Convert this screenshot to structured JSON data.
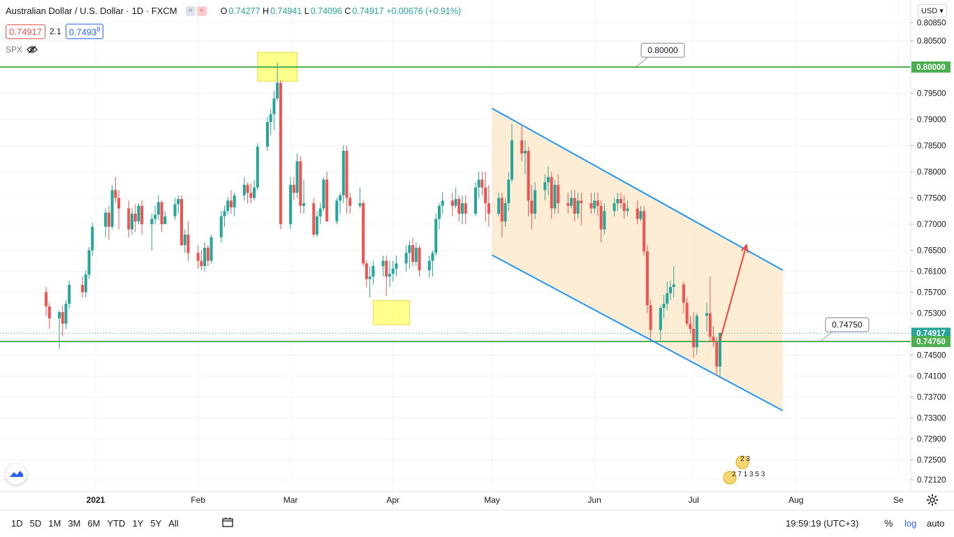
{
  "legend": {
    "title": "Australian Dollar / U.S. Dollar · 1D · FXCM",
    "ohlc": [
      {
        "label": "O",
        "value": "0.74277"
      },
      {
        "label": "H",
        "value": "0.74941"
      },
      {
        "label": "L",
        "value": "0.74096"
      },
      {
        "label": "C",
        "value": "0.74917"
      },
      {
        "label": "",
        "value": "+0.00676 (+0.91%)"
      }
    ],
    "sell_price": "0.74917",
    "spread": "2.1",
    "buy_price": "0.7493",
    "buy_price_sup": "8",
    "compare_symbol": "SPX"
  },
  "currency": "USD",
  "bottom": {
    "ranges": [
      "1D",
      "5D",
      "1M",
      "3M",
      "6M",
      "YTD",
      "1Y",
      "5Y",
      "All"
    ],
    "clock": "19:59:19 (UTC+3)",
    "percent": "%",
    "log": "log",
    "auto": "auto"
  },
  "event_labels": {
    "upper": "2 3",
    "lower": "2 7 1 3 5 3"
  },
  "colors": {
    "up": "#26a69a",
    "down": "#ef5350",
    "level_line": "#4caf50",
    "channel_line": "#2196f3",
    "channel_fill": "#fdeacc",
    "highlight": "#ffff66",
    "arrow": "#f44336",
    "current_price_label": "#26a69a"
  },
  "chart_data": {
    "type": "candlestick",
    "symbol": "AUDUSD",
    "timeframe": "1D",
    "y_ticks": [
      "0.80850",
      "0.80500",
      "0.80000",
      "0.79500",
      "0.79000",
      "0.78500",
      "0.78000",
      "0.77500",
      "0.77000",
      "0.76500",
      "0.76100",
      "0.75700",
      "0.75300",
      "0.74917",
      "0.74760",
      "0.74500",
      "0.74100",
      "0.73700",
      "0.73300",
      "0.72900",
      "0.72500",
      "0.72120"
    ],
    "x_ticks": [
      {
        "label": "2021",
        "date": "2021-01-01"
      },
      {
        "label": "Feb",
        "date": "2021-02-01"
      },
      {
        "label": "Mar",
        "date": "2021-03-01"
      },
      {
        "label": "Apr",
        "date": "2021-04-01"
      },
      {
        "label": "May",
        "date": "2021-05-01"
      },
      {
        "label": "Jun",
        "date": "2021-06-01"
      },
      {
        "label": "Jul",
        "date": "2021-07-01"
      },
      {
        "label": "Aug",
        "date": "2021-08-01"
      },
      {
        "label": "Se",
        "date": "2021-09-01"
      }
    ],
    "y_range": [
      0.7208,
      0.8105
    ],
    "horizontal_levels": [
      {
        "value": 0.8,
        "label": "0.80000",
        "color": "#4caf50"
      },
      {
        "value": 0.7476,
        "label": "0.74760",
        "callout": "0.74750",
        "color": "#4caf50"
      }
    ],
    "current_price": {
      "value": 0.74917,
      "label": "0.74917"
    },
    "channel": {
      "upper": [
        {
          "date": "2021-05-01",
          "value": 0.7921
        },
        {
          "date": "2021-07-28",
          "value": 0.7612
        }
      ],
      "lower": [
        {
          "date": "2021-05-01",
          "value": 0.7641
        },
        {
          "date": "2021-07-28",
          "value": 0.7344
        }
      ]
    },
    "arrow": {
      "from": {
        "date": "2021-07-09",
        "value": 0.7478
      },
      "to": {
        "date": "2021-07-17",
        "value": 0.766
      }
    },
    "highlight_boxes": [
      {
        "from": "2021-02-19",
        "to": "2021-03-03",
        "top": 0.8028,
        "bottom": 0.7973
      },
      {
        "from": "2021-03-26",
        "to": "2021-04-06",
        "top": 0.7554,
        "bottom": 0.7508
      }
    ],
    "candles": [
      [
        "2020-12-17",
        0.757,
        0.758,
        0.7525,
        0.7543
      ],
      [
        "2020-12-18",
        0.7543,
        0.755,
        0.75,
        0.752
      ],
      [
        "2020-12-21",
        0.752,
        0.7535,
        0.7462,
        0.7532
      ],
      [
        "2020-12-22",
        0.7532,
        0.7545,
        0.7486,
        0.751
      ],
      [
        "2020-12-23",
        0.751,
        0.7555,
        0.75,
        0.7548
      ],
      [
        "2020-12-24",
        0.7548,
        0.7592,
        0.7538,
        0.7584
      ],
      [
        "2020-12-28",
        0.7584,
        0.76,
        0.756,
        0.757
      ],
      [
        "2020-12-29",
        0.757,
        0.7612,
        0.756,
        0.7604
      ],
      [
        "2020-12-30",
        0.7604,
        0.7656,
        0.7596,
        0.765
      ],
      [
        "2020-12-31",
        0.765,
        0.7703,
        0.764,
        0.7695
      ],
      [
        "2021-01-04",
        0.7695,
        0.773,
        0.7675,
        0.7722
      ],
      [
        "2021-01-05",
        0.7722,
        0.7735,
        0.767,
        0.7695
      ],
      [
        "2021-01-06",
        0.7695,
        0.7775,
        0.769,
        0.7765
      ],
      [
        "2021-01-07",
        0.7765,
        0.779,
        0.774,
        0.775
      ],
      [
        "2021-01-08",
        0.775,
        0.7765,
        0.769,
        0.773
      ],
      [
        "2021-01-11",
        0.773,
        0.7745,
        0.7675,
        0.769
      ],
      [
        "2021-01-12",
        0.769,
        0.773,
        0.768,
        0.772
      ],
      [
        "2021-01-13",
        0.772,
        0.7738,
        0.7685,
        0.7705
      ],
      [
        "2021-01-14",
        0.7705,
        0.774,
        0.77,
        0.7735
      ],
      [
        "2021-01-15",
        0.7735,
        0.7745,
        0.768,
        0.77
      ],
      [
        "2021-01-18",
        0.77,
        0.772,
        0.765,
        0.771
      ],
      [
        "2021-01-19",
        0.771,
        0.7735,
        0.77,
        0.7718
      ],
      [
        "2021-01-20",
        0.7718,
        0.7755,
        0.7708,
        0.7742
      ],
      [
        "2021-01-21",
        0.7742,
        0.7745,
        0.7685,
        0.77
      ],
      [
        "2021-01-22",
        0.77,
        0.7725,
        0.77,
        0.7715
      ],
      [
        "2021-01-25",
        0.7715,
        0.775,
        0.7708,
        0.7738
      ],
      [
        "2021-01-26",
        0.7738,
        0.7755,
        0.772,
        0.7748
      ],
      [
        "2021-01-27",
        0.7748,
        0.7755,
        0.7658,
        0.766
      ],
      [
        "2021-01-28",
        0.766,
        0.769,
        0.7645,
        0.768
      ],
      [
        "2021-01-29",
        0.768,
        0.7705,
        0.763,
        0.7645
      ],
      [
        "2021-02-01",
        0.7645,
        0.766,
        0.7615,
        0.763
      ],
      [
        "2021-02-02",
        0.763,
        0.765,
        0.7612,
        0.762
      ],
      [
        "2021-02-03",
        0.762,
        0.7665,
        0.761,
        0.7655
      ],
      [
        "2021-02-04",
        0.7655,
        0.766,
        0.762,
        0.763
      ],
      [
        "2021-02-05",
        0.763,
        0.768,
        0.7625,
        0.7675
      ],
      [
        "2021-02-08",
        0.7675,
        0.7725,
        0.7665,
        0.7715
      ],
      [
        "2021-02-09",
        0.7715,
        0.7735,
        0.7695,
        0.7725
      ],
      [
        "2021-02-10",
        0.7725,
        0.7752,
        0.7718,
        0.7745
      ],
      [
        "2021-02-11",
        0.7745,
        0.7765,
        0.772,
        0.7732
      ],
      [
        "2021-02-12",
        0.7732,
        0.776,
        0.7715,
        0.7755
      ],
      [
        "2021-02-15",
        0.7755,
        0.779,
        0.7745,
        0.7775
      ],
      [
        "2021-02-16",
        0.7775,
        0.778,
        0.774,
        0.776
      ],
      [
        "2021-02-17",
        0.776,
        0.7778,
        0.774,
        0.775
      ],
      [
        "2021-02-18",
        0.775,
        0.7785,
        0.7745,
        0.777
      ],
      [
        "2021-02-19",
        0.777,
        0.7855,
        0.7765,
        0.7848
      ],
      [
        "2021-02-22",
        0.7848,
        0.7905,
        0.784,
        0.7895
      ],
      [
        "2021-02-23",
        0.7895,
        0.792,
        0.787,
        0.791
      ],
      [
        "2021-02-24",
        0.791,
        0.7955,
        0.788,
        0.794
      ],
      [
        "2021-02-25",
        0.794,
        0.8008,
        0.7935,
        0.797
      ],
      [
        "2021-02-26",
        0.797,
        0.7975,
        0.769,
        0.77
      ],
      [
        "2021-03-01",
        0.77,
        0.779,
        0.769,
        0.7775
      ],
      [
        "2021-03-02",
        0.7775,
        0.779,
        0.7745,
        0.776
      ],
      [
        "2021-03-03",
        0.776,
        0.7835,
        0.775,
        0.782
      ],
      [
        "2021-03-04",
        0.782,
        0.783,
        0.772,
        0.7735
      ],
      [
        "2021-03-05",
        0.7735,
        0.7785,
        0.772,
        0.774
      ],
      [
        "2021-03-08",
        0.774,
        0.775,
        0.7675,
        0.768
      ],
      [
        "2021-03-09",
        0.768,
        0.7725,
        0.7675,
        0.7715
      ],
      [
        "2021-03-10",
        0.7715,
        0.774,
        0.77,
        0.773
      ],
      [
        "2021-03-11",
        0.773,
        0.779,
        0.7725,
        0.7785
      ],
      [
        "2021-03-12",
        0.7785,
        0.78,
        0.7705,
        0.7705
      ],
      [
        "2021-03-15",
        0.7705,
        0.775,
        0.77,
        0.7745
      ],
      [
        "2021-03-16",
        0.7745,
        0.776,
        0.772,
        0.7755
      ],
      [
        "2021-03-17",
        0.7755,
        0.785,
        0.774,
        0.784
      ],
      [
        "2021-03-18",
        0.784,
        0.785,
        0.772,
        0.775
      ],
      [
        "2021-03-19",
        0.775,
        0.776,
        0.772,
        0.7735
      ],
      [
        "2021-03-22",
        0.7735,
        0.777,
        0.773,
        0.774
      ],
      [
        "2021-03-23",
        0.774,
        0.7745,
        0.762,
        0.7625
      ],
      [
        "2021-03-24",
        0.7625,
        0.763,
        0.758,
        0.7595
      ],
      [
        "2021-03-25",
        0.7595,
        0.762,
        0.756,
        0.76
      ],
      [
        "2021-03-26",
        0.76,
        0.763,
        0.7585,
        0.762
      ],
      [
        "2021-03-29",
        0.762,
        0.764,
        0.76,
        0.763
      ],
      [
        "2021-03-30",
        0.763,
        0.764,
        0.7563,
        0.76
      ],
      [
        "2021-03-31",
        0.76,
        0.763,
        0.758,
        0.7605
      ],
      [
        "2021-04-01",
        0.7605,
        0.763,
        0.759,
        0.7615
      ],
      [
        "2021-04-02",
        0.7615,
        0.764,
        0.76,
        0.7625
      ],
      [
        "2021-04-05",
        0.7625,
        0.766,
        0.761,
        0.7645
      ],
      [
        "2021-04-06",
        0.7645,
        0.7668,
        0.7615,
        0.766
      ],
      [
        "2021-04-07",
        0.766,
        0.7675,
        0.762,
        0.7628
      ],
      [
        "2021-04-08",
        0.7628,
        0.7665,
        0.762,
        0.7655
      ],
      [
        "2021-04-09",
        0.7655,
        0.766,
        0.76,
        0.7612
      ],
      [
        "2021-04-12",
        0.7612,
        0.764,
        0.7598,
        0.763
      ],
      [
        "2021-04-13",
        0.763,
        0.765,
        0.76,
        0.7645
      ],
      [
        "2021-04-14",
        0.7645,
        0.772,
        0.764,
        0.771
      ],
      [
        "2021-04-15",
        0.771,
        0.774,
        0.769,
        0.7735
      ],
      [
        "2021-04-16",
        0.7735,
        0.776,
        0.772,
        0.7745
      ],
      [
        "2021-04-19",
        0.7745,
        0.776,
        0.7715,
        0.7735
      ],
      [
        "2021-04-20",
        0.7735,
        0.777,
        0.773,
        0.7748
      ],
      [
        "2021-04-21",
        0.7748,
        0.7755,
        0.7705,
        0.772
      ],
      [
        "2021-04-22",
        0.772,
        0.7755,
        0.77,
        0.774
      ],
      [
        "2021-04-23",
        0.774,
        0.7755,
        0.77,
        0.772
      ],
      [
        "2021-04-26",
        0.772,
        0.778,
        0.7715,
        0.777
      ],
      [
        "2021-04-27",
        0.777,
        0.78,
        0.775,
        0.7785
      ],
      [
        "2021-04-28",
        0.7785,
        0.78,
        0.7755,
        0.777
      ],
      [
        "2021-04-29",
        0.777,
        0.78,
        0.7705,
        0.774
      ],
      [
        "2021-04-30",
        0.774,
        0.7775,
        0.7695,
        0.772
      ],
      [
        "2021-05-03",
        0.772,
        0.776,
        0.7715,
        0.775
      ],
      [
        "2021-05-04",
        0.775,
        0.776,
        0.7675,
        0.7705
      ],
      [
        "2021-05-05",
        0.7705,
        0.775,
        0.7695,
        0.774
      ],
      [
        "2021-05-06",
        0.774,
        0.78,
        0.7725,
        0.7785
      ],
      [
        "2021-05-07",
        0.7785,
        0.7892,
        0.778,
        0.786
      ],
      [
        "2021-05-10",
        0.786,
        0.789,
        0.782,
        0.7835
      ],
      [
        "2021-05-11",
        0.7835,
        0.786,
        0.7795,
        0.784
      ],
      [
        "2021-05-12",
        0.784,
        0.7848,
        0.7715,
        0.7745
      ],
      [
        "2021-05-13",
        0.7745,
        0.7775,
        0.769,
        0.772
      ],
      [
        "2021-05-14",
        0.772,
        0.778,
        0.771,
        0.7765
      ],
      [
        "2021-05-17",
        0.7765,
        0.7795,
        0.7745,
        0.778
      ],
      [
        "2021-05-18",
        0.778,
        0.781,
        0.7755,
        0.779
      ],
      [
        "2021-05-19",
        0.779,
        0.78,
        0.771,
        0.773
      ],
      [
        "2021-05-20",
        0.773,
        0.7785,
        0.772,
        0.7775
      ],
      [
        "2021-05-21",
        0.7775,
        0.7795,
        0.772,
        0.774
      ],
      [
        "2021-05-24",
        0.774,
        0.776,
        0.772,
        0.7735
      ],
      [
        "2021-05-25",
        0.7735,
        0.7765,
        0.773,
        0.775
      ],
      [
        "2021-05-26",
        0.775,
        0.7765,
        0.7705,
        0.772
      ],
      [
        "2021-05-27",
        0.772,
        0.776,
        0.771,
        0.7745
      ],
      [
        "2021-05-28",
        0.7745,
        0.776,
        0.7698,
        0.774
      ],
      [
        "2021-05-31",
        0.774,
        0.776,
        0.772,
        0.773
      ],
      [
        "2021-06-01",
        0.773,
        0.776,
        0.772,
        0.7745
      ],
      [
        "2021-06-02",
        0.7745,
        0.776,
        0.7715,
        0.7735
      ],
      [
        "2021-06-03",
        0.7735,
        0.7745,
        0.7665,
        0.769
      ],
      [
        "2021-06-04",
        0.769,
        0.774,
        0.768,
        0.7725
      ],
      [
        "2021-06-07",
        0.7725,
        0.775,
        0.7715,
        0.774
      ],
      [
        "2021-06-08",
        0.774,
        0.776,
        0.7725,
        0.7748
      ],
      [
        "2021-06-09",
        0.7748,
        0.776,
        0.773,
        0.774
      ],
      [
        "2021-06-10",
        0.774,
        0.7755,
        0.771,
        0.7725
      ],
      [
        "2021-06-11",
        0.7725,
        0.7745,
        0.7715,
        0.773
      ],
      [
        "2021-06-14",
        0.773,
        0.7745,
        0.77,
        0.771
      ],
      [
        "2021-06-15",
        0.771,
        0.7735,
        0.7705,
        0.7725
      ],
      [
        "2021-06-16",
        0.7725,
        0.7735,
        0.764,
        0.7648
      ],
      [
        "2021-06-17",
        0.7648,
        0.766,
        0.753,
        0.7545
      ],
      [
        "2021-06-18",
        0.7545,
        0.7555,
        0.748,
        0.7498
      ],
      [
        "2021-06-21",
        0.7498,
        0.7545,
        0.7478,
        0.754
      ],
      [
        "2021-06-22",
        0.754,
        0.7565,
        0.752,
        0.7548
      ],
      [
        "2021-06-23",
        0.7548,
        0.759,
        0.7535,
        0.7568
      ],
      [
        "2021-06-24",
        0.7568,
        0.7592,
        0.7555,
        0.758
      ],
      [
        "2021-06-25",
        0.758,
        0.762,
        0.756,
        0.7585
      ],
      [
        "2021-06-28",
        0.7585,
        0.759,
        0.753,
        0.755
      ],
      [
        "2021-06-29",
        0.755,
        0.756,
        0.7505,
        0.751
      ],
      [
        "2021-06-30",
        0.751,
        0.7525,
        0.749,
        0.75
      ],
      [
        "2021-07-01",
        0.75,
        0.7532,
        0.7445,
        0.7465
      ],
      [
        "2021-07-02",
        0.7465,
        0.753,
        0.745,
        0.7525
      ],
      [
        "2021-07-05",
        0.7525,
        0.755,
        0.7495,
        0.753
      ],
      [
        "2021-07-06",
        0.753,
        0.76,
        0.7475,
        0.7485
      ],
      [
        "2021-07-07",
        0.7485,
        0.7505,
        0.7465,
        0.7475
      ],
      [
        "2021-07-08",
        0.7475,
        0.7485,
        0.741,
        0.7428
      ],
      [
        "2021-07-09",
        0.7428,
        0.7494,
        0.741,
        0.7492
      ]
    ]
  }
}
